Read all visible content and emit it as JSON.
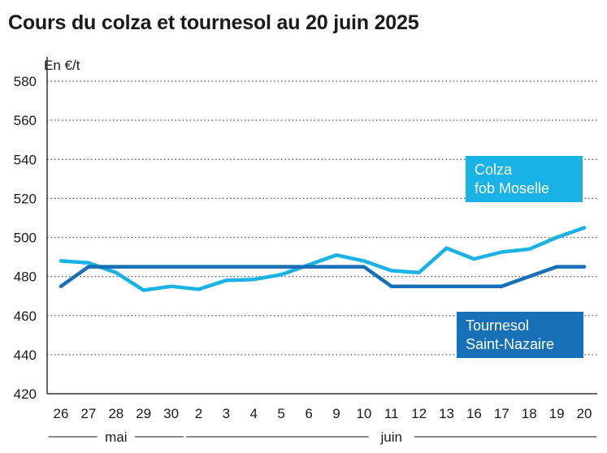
{
  "page": {
    "title": "Cours du colza et tournesol au 20 juin 2025"
  },
  "chart_data": {
    "type": "line",
    "title": "Cours du colza et tournesol au 20 juin 2025",
    "unit_label": "En €/t",
    "ylim": [
      420,
      580
    ],
    "yticks": [
      420,
      440,
      460,
      480,
      500,
      520,
      540,
      560,
      580
    ],
    "grid": "horizontal dotted",
    "categories": [
      "26",
      "27",
      "28",
      "29",
      "30",
      "2",
      "3",
      "4",
      "5",
      "6",
      "9",
      "10",
      "11",
      "12",
      "13",
      "16",
      "17",
      "18",
      "19",
      "20"
    ],
    "months": [
      {
        "label": "mai",
        "from": 0,
        "to": 4
      },
      {
        "label": "juin",
        "from": 5,
        "to": 19
      }
    ],
    "series": [
      {
        "name": "Colza fob Moselle",
        "label_lines": [
          "Colza",
          "fob Moselle"
        ],
        "color": "#19b2e6",
        "values": [
          488,
          487,
          482,
          473,
          475,
          473.5,
          478,
          478.5,
          481,
          486,
          491,
          488,
          483,
          482,
          494.5,
          489,
          492.5,
          494,
          500,
          505
        ]
      },
      {
        "name": "Tournesol Saint-Nazaire",
        "label_lines": [
          "Tournesol",
          "Saint-Nazaire"
        ],
        "color": "#1570b8",
        "values": [
          475,
          485,
          485,
          485,
          485,
          485,
          485,
          485,
          485,
          485,
          485,
          485,
          475,
          475,
          475,
          475,
          475,
          480,
          485,
          485
        ]
      }
    ]
  }
}
